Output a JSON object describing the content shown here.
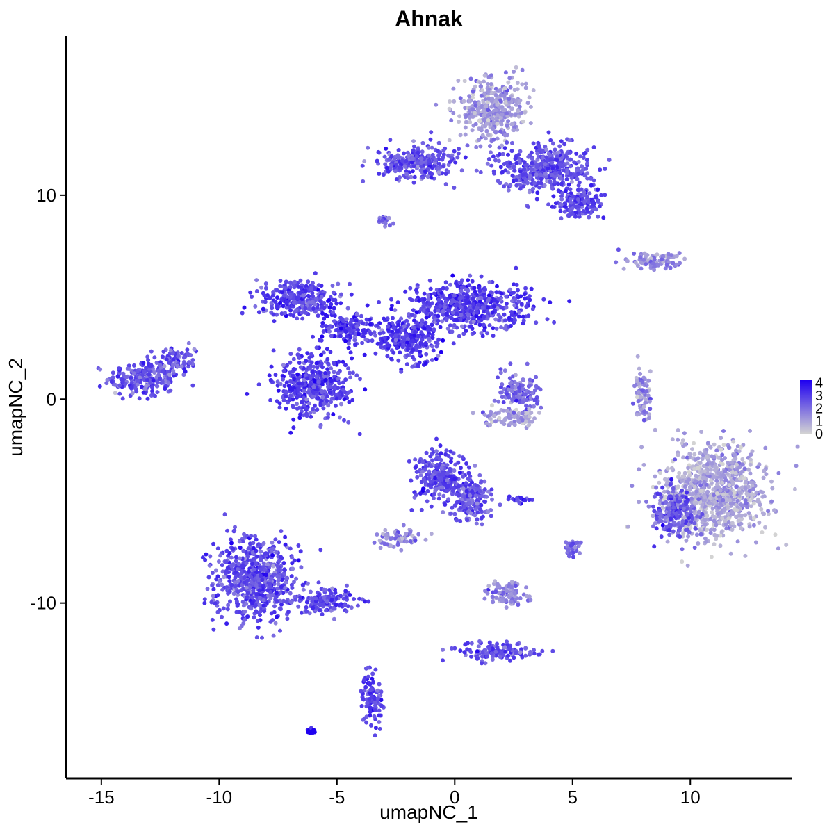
{
  "chart_data": {
    "type": "scatter",
    "title": "Ahnak",
    "xlabel": "umapNC_1",
    "ylabel": "umapNC_2",
    "xlim": [
      -16.5,
      14.3
    ],
    "ylim": [
      -18.6,
      17.8
    ],
    "x_ticks": [
      -15,
      -10,
      -5,
      0,
      5,
      10
    ],
    "x_tick_labels": [
      "-15",
      "-10",
      "-5",
      "0",
      "5",
      "10"
    ],
    "y_ticks": [
      -10,
      0,
      10
    ],
    "y_tick_labels": [
      "-10",
      "0",
      "10"
    ],
    "grid": false,
    "color_scale": {
      "low": "#d3d3d3",
      "high": "#1f00f0",
      "min": 0,
      "max": 4.2,
      "ticks": [
        0,
        1,
        2,
        3,
        4
      ],
      "tick_labels": [
        "0",
        "1",
        "2",
        "3",
        "4"
      ],
      "legend_position": "right"
    },
    "clusters": [
      {
        "center": [
          -13.2,
          1.0
        ],
        "spread": [
          1.0,
          0.6
        ],
        "expression": 2.6
      },
      {
        "center": [
          -11.8,
          1.9
        ],
        "spread": [
          0.5,
          0.4
        ],
        "expression": 2.4
      },
      {
        "center": [
          -8.4,
          -8.8
        ],
        "spread": [
          1.2,
          1.4
        ],
        "expression": 2.7
      },
      {
        "center": [
          -5.6,
          -9.9
        ],
        "spread": [
          0.9,
          0.4
        ],
        "expression": 2.8
      },
      {
        "center": [
          -3.5,
          -14.7
        ],
        "spread": [
          0.3,
          0.8
        ],
        "expression": 2.9
      },
      {
        "center": [
          -6.1,
          -16.3
        ],
        "spread": [
          0.12,
          0.08
        ],
        "expression": 4.1
      },
      {
        "center": [
          -6.6,
          5.0
        ],
        "spread": [
          1.2,
          0.6
        ],
        "expression": 2.8
      },
      {
        "center": [
          -4.5,
          3.5
        ],
        "spread": [
          0.8,
          0.5
        ],
        "expression": 2.9
      },
      {
        "center": [
          -6.0,
          0.6
        ],
        "spread": [
          1.1,
          1.0
        ],
        "expression": 2.9
      },
      {
        "center": [
          -2.0,
          3.0
        ],
        "spread": [
          1.0,
          0.7
        ],
        "expression": 3.0
      },
      {
        "center": [
          0.7,
          4.6
        ],
        "spread": [
          1.7,
          0.8
        ],
        "expression": 2.9
      },
      {
        "center": [
          -1.6,
          11.6
        ],
        "spread": [
          1.1,
          0.6
        ],
        "expression": 2.6
      },
      {
        "center": [
          1.6,
          14.2
        ],
        "spread": [
          1.0,
          1.0
        ],
        "expression": 1.2
      },
      {
        "center": [
          3.8,
          11.3
        ],
        "spread": [
          1.3,
          0.8
        ],
        "expression": 2.6
      },
      {
        "center": [
          5.3,
          9.6
        ],
        "spread": [
          0.7,
          0.5
        ],
        "expression": 2.8
      },
      {
        "center": [
          8.5,
          6.8
        ],
        "spread": [
          0.8,
          0.3
        ],
        "expression": 1.4
      },
      {
        "center": [
          2.7,
          0.3
        ],
        "spread": [
          0.6,
          0.6
        ],
        "expression": 2.2
      },
      {
        "center": [
          2.5,
          -0.9
        ],
        "spread": [
          0.8,
          0.3
        ],
        "expression": 1.0
      },
      {
        "center": [
          8.0,
          0.2
        ],
        "spread": [
          0.25,
          0.8
        ],
        "expression": 1.3
      },
      {
        "center": [
          11.0,
          -4.5
        ],
        "spread": [
          1.5,
          1.5
        ],
        "expression": 0.9
      },
      {
        "center": [
          9.3,
          -5.6
        ],
        "spread": [
          0.6,
          0.8
        ],
        "expression": 2.5
      },
      {
        "center": [
          -0.6,
          -3.8
        ],
        "spread": [
          0.8,
          0.8
        ],
        "expression": 2.7
      },
      {
        "center": [
          0.7,
          -4.9
        ],
        "spread": [
          0.6,
          0.7
        ],
        "expression": 2.5
      },
      {
        "center": [
          -2.4,
          -6.8
        ],
        "spread": [
          0.6,
          0.3
        ],
        "expression": 1.5
      },
      {
        "center": [
          2.3,
          -9.6
        ],
        "spread": [
          0.6,
          0.4
        ],
        "expression": 1.5
      },
      {
        "center": [
          1.8,
          -12.4
        ],
        "spread": [
          1.1,
          0.3
        ],
        "expression": 2.6
      },
      {
        "center": [
          2.8,
          -4.9
        ],
        "spread": [
          0.3,
          0.1
        ],
        "expression": 3.2
      },
      {
        "center": [
          5.0,
          -7.3
        ],
        "spread": [
          0.25,
          0.25
        ],
        "expression": 2.0
      },
      {
        "center": [
          -3.0,
          8.8
        ],
        "spread": [
          0.2,
          0.2
        ],
        "expression": 2.0
      }
    ]
  }
}
